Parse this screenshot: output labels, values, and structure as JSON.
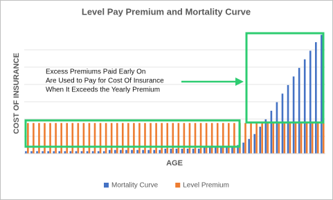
{
  "chart_data": {
    "type": "bar",
    "title": "Level Pay Premium and Mortality Curve",
    "x_label": "AGE",
    "y_label": "COST OF INSURANCE",
    "annotation": [
      "Excess Premiums Paid Early On",
      "Are Used to Pay for Cost Of Insurance",
      "When It Exceeds the Yearly Premium"
    ],
    "categories": [
      null,
      null,
      null,
      null,
      null,
      null,
      null,
      null,
      null,
      null,
      null,
      null,
      null,
      null,
      null,
      null,
      null,
      null,
      null,
      null,
      null,
      null,
      null,
      null,
      null,
      null,
      null,
      null,
      null,
      null,
      null,
      null,
      null,
      null,
      null,
      null,
      null,
      null,
      null,
      null,
      null,
      null,
      null,
      null,
      null,
      null,
      null,
      null,
      null,
      null,
      null,
      null,
      null,
      null
    ],
    "series": [
      {
        "name": "Mortality Curve",
        "color": "#4472c4",
        "values": [
          2,
          2,
          2,
          2,
          2,
          2,
          2,
          2,
          2,
          2,
          2,
          2,
          2,
          2,
          2,
          3,
          3,
          3,
          3,
          3,
          3,
          3,
          3,
          3,
          3,
          4,
          4,
          4,
          4,
          4,
          4,
          4,
          5,
          5,
          5,
          5,
          5,
          6,
          7,
          9,
          12,
          16,
          22,
          28,
          35,
          42,
          49,
          56,
          63,
          70,
          77,
          84,
          91,
          97
        ]
      },
      {
        "name": "Level Premium",
        "color": "#ed7d31",
        "values": [
          25,
          25,
          25,
          25,
          25,
          25,
          25,
          25,
          25,
          25,
          25,
          25,
          25,
          25,
          25,
          25,
          25,
          25,
          25,
          25,
          25,
          25,
          25,
          25,
          25,
          25,
          25,
          25,
          25,
          25,
          25,
          25,
          25,
          25,
          25,
          25,
          25,
          25,
          25,
          25,
          25,
          25,
          25,
          25,
          25,
          25,
          25,
          25,
          25,
          25,
          25,
          25,
          25,
          25
        ]
      }
    ],
    "ylim": [
      0,
      100
    ],
    "legend": "bottom"
  }
}
